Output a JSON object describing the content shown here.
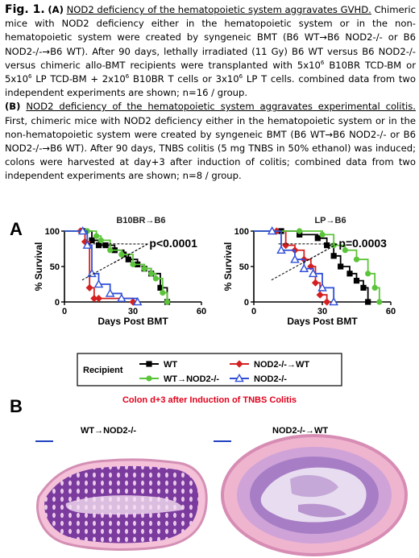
{
  "caption": {
    "fig_label": "Fig. 1.",
    "a_letter": "(A)",
    "a_title": "NOD2 deficiency of the hematopoietic system aggravates GVHD.",
    "a_body_1": "Chimeric mice with NOD2 deficiency either in the hematopoietic system or in the non-hematopoietic system were created by syngeneic BMT (B6 WT→B6 NOD2-/- or B6 NOD2-/-→B6 WT). After 90 days, lethally irradiated (11 Gy) B6 WT versus B6 NOD2-/- versus chimeric allo-BMT recipients were transplanted with 5x10",
    "a_sup_1": "6",
    "a_body_2": " B10BR TCD-BM or 5x10",
    "a_sup_2": "6",
    "a_body_3": " LP TCD-BM + 2x10",
    "a_sup_3": "6",
    "a_body_4": " B10BR T cells or 3x10",
    "a_sup_4": "6",
    "a_body_5": " LP T cells. combined data from two independent experiments are shown; n=16 / group.",
    "b_letter": "(B)",
    "b_title": "NOD2 deficiency of the hematopoietic system aggravates experimental colitis.",
    "b_body": " First, chimeric mice with NOD2 deficiency either in the hematopoietic system or in the non-hematopoietic system were created by syngeneic BMT (B6 WT→B6 NOD2-/- or B6 NOD2-/-→B6 WT). After 90 days, TNBS colitis (5 mg TNBS in 50% ethanol) was induced; colons were harvested at day+3 after induction of colitis; combined data from two independent experiments are shown; n=8 / group."
  },
  "panel_a_letter": "A",
  "panel_b_letter": "B",
  "legend": {
    "title": "Recipient",
    "items": [
      {
        "label": "WT",
        "color": "#000000",
        "marker": "square"
      },
      {
        "label": "NOD2-/-→WT",
        "color": "#d42020",
        "marker": "diamond"
      },
      {
        "label": "WT→NOD2-/-",
        "color": "#5cc43a",
        "marker": "circle"
      },
      {
        "label": "NOD2-/-",
        "color": "#2f4fd8",
        "marker": "triangle"
      }
    ]
  },
  "chart_data": [
    {
      "type": "line",
      "step": true,
      "title": "B10BR→B6",
      "xlabel": "Days Post BMT",
      "ylabel": "% Survival",
      "xlim": [
        0,
        60
      ],
      "ylim": [
        0,
        100
      ],
      "xticks": [
        "0",
        "30",
        "60"
      ],
      "yticks": [
        "0",
        "50",
        "100"
      ],
      "annotation": "p<0.0001",
      "series": [
        {
          "name": "WT",
          "color": "#000000",
          "marker": "square",
          "x": [
            0,
            8,
            12,
            15,
            18,
            22,
            26,
            28,
            32,
            35,
            38,
            42,
            45
          ],
          "y": [
            100,
            100,
            87,
            80,
            80,
            73,
            67,
            60,
            53,
            47,
            40,
            20,
            0
          ]
        },
        {
          "name": "NOD2-/-→WT",
          "color": "#d42020",
          "marker": "diamond",
          "x": [
            0,
            7,
            9,
            11,
            13,
            15,
            30
          ],
          "y": [
            100,
            100,
            85,
            20,
            5,
            5,
            0
          ]
        },
        {
          "name": "WT→NOD2-/-",
          "color": "#5cc43a",
          "marker": "circle",
          "x": [
            0,
            10,
            14,
            16,
            20,
            25,
            30,
            35,
            38,
            40,
            43,
            45
          ],
          "y": [
            100,
            100,
            93,
            87,
            73,
            67,
            53,
            47,
            40,
            33,
            13,
            0
          ]
        },
        {
          "name": "NOD2-/-",
          "color": "#2f4fd8",
          "marker": "triangle",
          "x": [
            0,
            8,
            10,
            12,
            15,
            20,
            25,
            32
          ],
          "y": [
            100,
            100,
            80,
            40,
            25,
            12,
            5,
            0
          ]
        }
      ]
    },
    {
      "type": "line",
      "step": true,
      "title": "LP→B6",
      "xlabel": "Days Post BMT",
      "ylabel": "% Survival",
      "xlim": [
        0,
        60
      ],
      "ylim": [
        0,
        100
      ],
      "xticks": [
        "0",
        "30",
        "60"
      ],
      "yticks": [
        "0",
        "50",
        "100"
      ],
      "annotation": "p=0.0003",
      "series": [
        {
          "name": "WT",
          "color": "#000000",
          "marker": "square",
          "x": [
            0,
            12,
            20,
            28,
            32,
            35,
            38,
            42,
            45,
            48,
            50
          ],
          "y": [
            100,
            100,
            95,
            90,
            80,
            65,
            50,
            40,
            30,
            20,
            0
          ]
        },
        {
          "name": "NOD2-/-→WT",
          "color": "#d42020",
          "marker": "diamond",
          "x": [
            0,
            10,
            14,
            18,
            22,
            25,
            27,
            29,
            32
          ],
          "y": [
            100,
            100,
            80,
            73,
            60,
            50,
            27,
            10,
            0
          ]
        },
        {
          "name": "WT→NOD2-/-",
          "color": "#5cc43a",
          "marker": "circle",
          "x": [
            0,
            20,
            30,
            35,
            40,
            45,
            50,
            53,
            55
          ],
          "y": [
            100,
            100,
            95,
            80,
            73,
            60,
            40,
            20,
            0
          ]
        },
        {
          "name": "NOD2-/-",
          "color": "#2f4fd8",
          "marker": "triangle",
          "x": [
            0,
            8,
            12,
            18,
            22,
            26,
            30,
            35
          ],
          "y": [
            100,
            100,
            73,
            60,
            47,
            40,
            20,
            0
          ]
        }
      ]
    }
  ],
  "panel_b": {
    "title": "Colon d+3 after Induction of TNBS Colitis",
    "left_label": "WT→NOD2-/-",
    "right_label": "NOD2-/-→WT"
  }
}
